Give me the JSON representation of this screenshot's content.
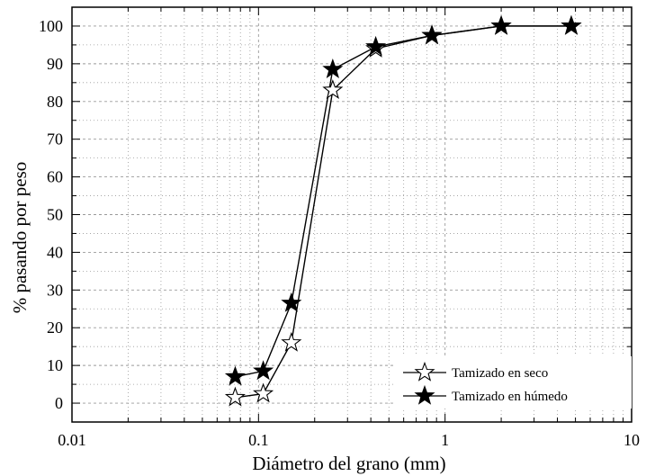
{
  "chart_data": {
    "type": "line",
    "x_scale": "log",
    "xlim": [
      0.01,
      10
    ],
    "ylim": [
      -5,
      105
    ],
    "grid": true,
    "xlabel": "Diámetro del grano (mm)",
    "ylabel": "% pasando por peso",
    "x_ticks": [
      0.01,
      0.1,
      1,
      10
    ],
    "x_tick_labels": [
      "0.01",
      "0.1",
      "1",
      "10"
    ],
    "y_ticks": [
      0,
      10,
      20,
      30,
      40,
      50,
      60,
      70,
      80,
      90,
      100
    ],
    "y_tick_labels": [
      "0",
      "10",
      "20",
      "30",
      "40",
      "50",
      "60",
      "70",
      "80",
      "90",
      "100"
    ],
    "legend_position": "bottom-right",
    "series": [
      {
        "name": "Tamizado en seco",
        "marker": "hollow-star",
        "x": [
          0.075,
          0.106,
          0.15,
          0.25,
          0.425,
          0.85,
          2.0,
          4.75
        ],
        "y": [
          1.5,
          2.5,
          16.0,
          83.0,
          94.0,
          97.5,
          100.0,
          100.0
        ]
      },
      {
        "name": "Tamizado en húmedo",
        "marker": "filled-star",
        "x": [
          0.075,
          0.106,
          0.15,
          0.25,
          0.425,
          0.85,
          2.0,
          4.75
        ],
        "y": [
          7.0,
          8.5,
          26.5,
          88.5,
          94.5,
          97.5,
          100.0,
          100.0
        ]
      }
    ],
    "colors": {
      "line": "#000000",
      "grid": "#9a9a9a",
      "frame": "#000000",
      "marker_fill_dry": "#ffffff",
      "marker_fill_wet": "#000000"
    }
  }
}
